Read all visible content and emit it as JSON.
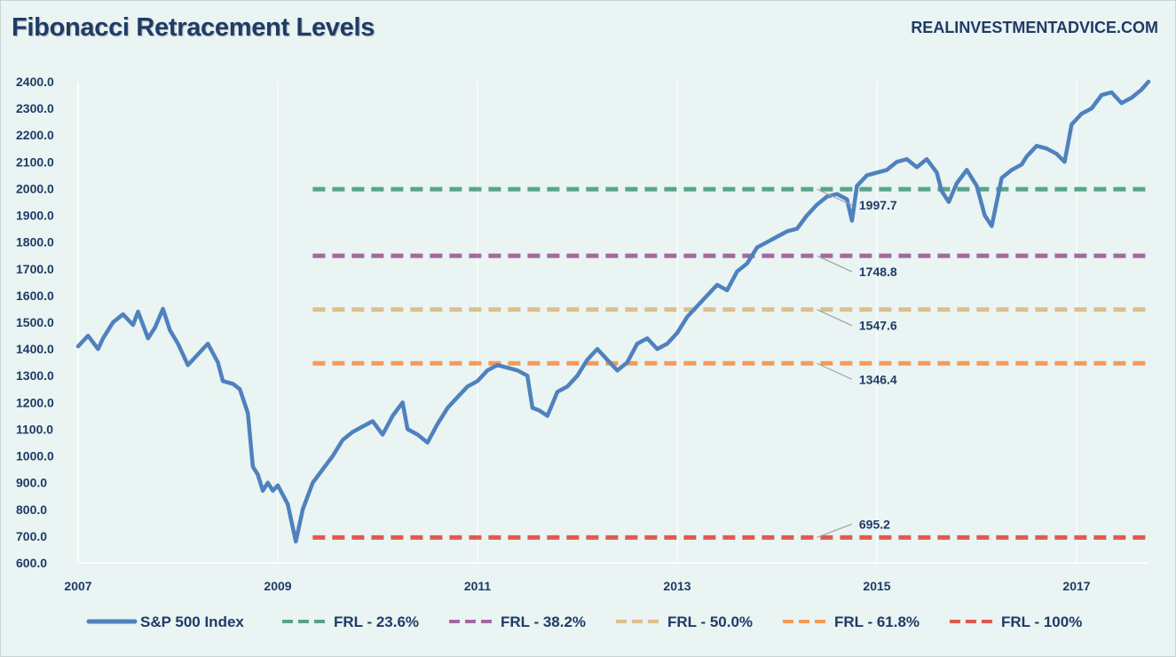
{
  "title": "Fibonacci Retracement Levels",
  "source": "REALINVESTMENTADVICE.COM",
  "chart_data": {
    "type": "line",
    "ylim": [
      600,
      2400
    ],
    "y_ticks": [
      "600.0",
      "700.0",
      "800.0",
      "900.0",
      "1000.0",
      "1100.0",
      "1200.0",
      "1300.0",
      "1400.0",
      "1500.0",
      "1600.0",
      "1700.0",
      "1800.0",
      "1900.0",
      "2000.0",
      "2100.0",
      "2200.0",
      "2300.0",
      "2400.0"
    ],
    "x_ticks": [
      "2007",
      "2009",
      "2011",
      "2013",
      "2015",
      "2017"
    ],
    "grid": "vertical",
    "legend_position": "bottom",
    "series": [
      {
        "name": "S&P 500 Index",
        "color": "#4f81bd",
        "x": [
          2007.0,
          2007.1,
          2007.2,
          2007.25,
          2007.35,
          2007.45,
          2007.55,
          2007.6,
          2007.7,
          2007.77,
          2007.85,
          2007.92,
          2008.0,
          2008.1,
          2008.2,
          2008.3,
          2008.4,
          2008.45,
          2008.55,
          2008.62,
          2008.7,
          2008.75,
          2008.8,
          2008.85,
          2008.9,
          2008.95,
          2009.0,
          2009.1,
          2009.18,
          2009.25,
          2009.35,
          2009.45,
          2009.55,
          2009.65,
          2009.75,
          2009.85,
          2009.95,
          2010.05,
          2010.15,
          2010.25,
          2010.3,
          2010.4,
          2010.5,
          2010.6,
          2010.7,
          2010.8,
          2010.9,
          2011.0,
          2011.1,
          2011.2,
          2011.3,
          2011.4,
          2011.5,
          2011.55,
          2011.62,
          2011.7,
          2011.8,
          2011.9,
          2012.0,
          2012.1,
          2012.2,
          2012.3,
          2012.4,
          2012.5,
          2012.6,
          2012.7,
          2012.8,
          2012.9,
          2013.0,
          2013.1,
          2013.2,
          2013.3,
          2013.4,
          2013.5,
          2013.6,
          2013.7,
          2013.8,
          2013.9,
          2014.0,
          2014.1,
          2014.2,
          2014.3,
          2014.4,
          2014.5,
          2014.6,
          2014.7,
          2014.75,
          2014.8,
          2014.9,
          2015.0,
          2015.1,
          2015.2,
          2015.3,
          2015.4,
          2015.5,
          2015.6,
          2015.65,
          2015.72,
          2015.8,
          2015.9,
          2016.0,
          2016.08,
          2016.15,
          2016.25,
          2016.35,
          2016.45,
          2016.5,
          2016.6,
          2016.7,
          2016.8,
          2016.88,
          2016.95,
          2017.05,
          2017.15,
          2017.25,
          2017.35,
          2017.45,
          2017.55,
          2017.65,
          2017.72
        ],
        "y": [
          1410,
          1450,
          1400,
          1440,
          1500,
          1530,
          1490,
          1540,
          1440,
          1480,
          1550,
          1470,
          1420,
          1340,
          1380,
          1420,
          1350,
          1280,
          1270,
          1250,
          1160,
          960,
          930,
          870,
          900,
          870,
          890,
          820,
          680,
          800,
          900,
          950,
          1000,
          1060,
          1090,
          1110,
          1130,
          1080,
          1150,
          1200,
          1100,
          1080,
          1050,
          1120,
          1180,
          1220,
          1260,
          1280,
          1320,
          1340,
          1330,
          1320,
          1300,
          1180,
          1170,
          1150,
          1240,
          1260,
          1300,
          1360,
          1400,
          1360,
          1320,
          1350,
          1420,
          1440,
          1400,
          1420,
          1460,
          1520,
          1560,
          1600,
          1640,
          1620,
          1690,
          1720,
          1780,
          1800,
          1820,
          1840,
          1850,
          1900,
          1940,
          1970,
          1980,
          1960,
          1880,
          2010,
          2050,
          2060,
          2070,
          2100,
          2110,
          2080,
          2110,
          2060,
          1990,
          1950,
          2020,
          2070,
          2010,
          1900,
          1860,
          2040,
          2070,
          2090,
          2120,
          2160,
          2150,
          2130,
          2100,
          2240,
          2280,
          2300,
          2350,
          2360,
          2320,
          2340,
          2370,
          2400
        ]
      },
      {
        "name": "FRL - 23.6%",
        "color": "#5aa38a",
        "value": 1997.7,
        "label": "1997.7"
      },
      {
        "name": "FRL - 38.2%",
        "color": "#a3699d",
        "value": 1748.8,
        "label": "1748.8"
      },
      {
        "name": "FRL - 50.0%",
        "color": "#dcbf8c",
        "value": 1547.6,
        "label": "1547.6"
      },
      {
        "name": "FRL - 61.8%",
        "color": "#f59a57",
        "value": 1346.4,
        "label": "1346.4"
      },
      {
        "name": "FRL - 100%",
        "color": "#e05a4e",
        "value": 695.2,
        "label": "695.2"
      }
    ]
  }
}
